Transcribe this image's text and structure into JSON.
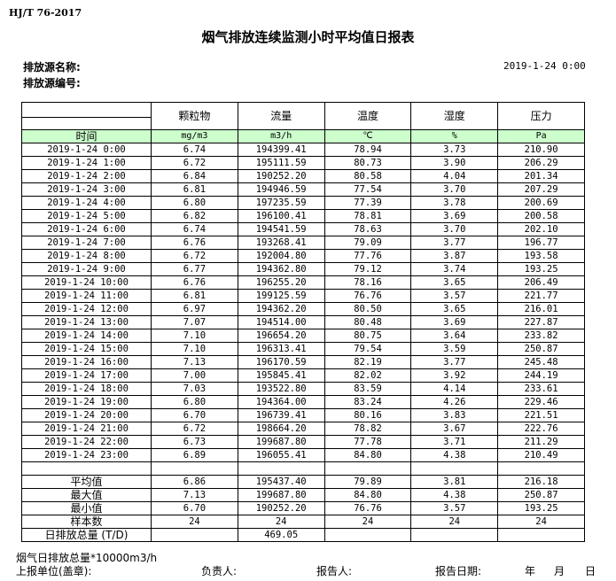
{
  "header": {
    "standard": "HJ/T  76-2017",
    "title": "烟气排放连续监测小时平均值日报表",
    "source_name_label": "排放源名称:",
    "source_no_label": "排放源编号:",
    "datetime": "2019-1-24 0:00"
  },
  "table": {
    "columns": [
      "颗粒物",
      "流量",
      "温度",
      "湿度",
      "压力"
    ],
    "time_label": "时间",
    "units": [
      "mg/m3",
      "m3/h",
      "℃",
      "%",
      "Pa"
    ],
    "rows": [
      [
        "2019-1-24 0:00",
        "6.74",
        "194399.41",
        "78.94",
        "3.73",
        "210.90"
      ],
      [
        "2019-1-24 1:00",
        "6.72",
        "195111.59",
        "80.73",
        "3.90",
        "206.29"
      ],
      [
        "2019-1-24 2:00",
        "6.84",
        "190252.20",
        "80.58",
        "4.04",
        "201.34"
      ],
      [
        "2019-1-24 3:00",
        "6.81",
        "194946.59",
        "77.54",
        "3.70",
        "207.29"
      ],
      [
        "2019-1-24 4:00",
        "6.80",
        "197235.59",
        "77.39",
        "3.78",
        "200.69"
      ],
      [
        "2019-1-24 5:00",
        "6.82",
        "196100.41",
        "78.81",
        "3.69",
        "200.58"
      ],
      [
        "2019-1-24 6:00",
        "6.74",
        "194541.59",
        "78.63",
        "3.70",
        "202.10"
      ],
      [
        "2019-1-24 7:00",
        "6.76",
        "193268.41",
        "79.09",
        "3.77",
        "196.77"
      ],
      [
        "2019-1-24 8:00",
        "6.72",
        "192004.80",
        "77.76",
        "3.87",
        "193.58"
      ],
      [
        "2019-1-24 9:00",
        "6.77",
        "194362.80",
        "79.12",
        "3.74",
        "193.25"
      ],
      [
        "2019-1-24 10:00",
        "6.76",
        "196255.20",
        "78.16",
        "3.65",
        "206.49"
      ],
      [
        "2019-1-24 11:00",
        "6.81",
        "199125.59",
        "76.76",
        "3.57",
        "221.77"
      ],
      [
        "2019-1-24 12:00",
        "6.97",
        "194362.20",
        "80.50",
        "3.65",
        "216.01"
      ],
      [
        "2019-1-24 13:00",
        "7.07",
        "194514.00",
        "80.48",
        "3.69",
        "227.87"
      ],
      [
        "2019-1-24 14:00",
        "7.10",
        "196654.20",
        "80.75",
        "3.64",
        "233.82"
      ],
      [
        "2019-1-24 15:00",
        "7.10",
        "196313.41",
        "79.54",
        "3.59",
        "250.87"
      ],
      [
        "2019-1-24 16:00",
        "7.13",
        "196170.59",
        "82.19",
        "3.77",
        "245.48"
      ],
      [
        "2019-1-24 17:00",
        "7.00",
        "195845.41",
        "82.02",
        "3.92",
        "244.19"
      ],
      [
        "2019-1-24 18:00",
        "7.03",
        "193522.80",
        "83.59",
        "4.14",
        "233.61"
      ],
      [
        "2019-1-24 19:00",
        "6.80",
        "194364.00",
        "83.24",
        "4.26",
        "229.46"
      ],
      [
        "2019-1-24 20:00",
        "6.70",
        "196739.41",
        "80.16",
        "3.83",
        "221.51"
      ],
      [
        "2019-1-24 21:00",
        "6.72",
        "198664.20",
        "78.82",
        "3.67",
        "222.76"
      ],
      [
        "2019-1-24 22:00",
        "6.73",
        "199687.80",
        "77.78",
        "3.71",
        "211.29"
      ],
      [
        "2019-1-24 23:00",
        "6.89",
        "196055.41",
        "84.80",
        "4.38",
        "210.49"
      ]
    ],
    "summary": [
      [
        "平均值",
        "6.86",
        "195437.40",
        "79.89",
        "3.81",
        "216.18"
      ],
      [
        "最大值",
        "7.13",
        "199687.80",
        "84.80",
        "4.38",
        "250.87"
      ],
      [
        "最小值",
        "6.70",
        "190252.20",
        "76.76",
        "3.57",
        "193.25"
      ],
      [
        "样本数",
        "24",
        "24",
        "24",
        "24",
        "24"
      ],
      [
        "日排放总量 (T/D)",
        "",
        "469.05",
        "",
        "",
        ""
      ]
    ]
  },
  "footer": {
    "note": "烟气日排放总量*10000m3/h",
    "unit_label": "上报单位(盖章):",
    "manager_label": "负责人:",
    "reporter_label": "报告人:",
    "date_label": "报告日期:",
    "year": "年",
    "month": "月",
    "day": "日"
  }
}
